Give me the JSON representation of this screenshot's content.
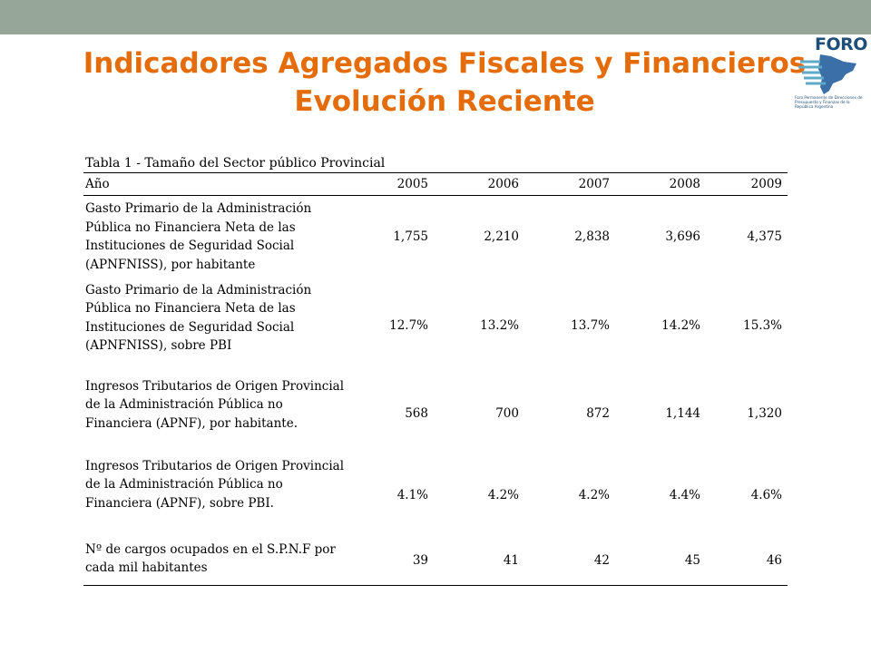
{
  "header": {
    "title_line1": "Indicadores Agregados Fiscales y Financieros",
    "title_line2": "Evolución Reciente"
  },
  "logo": {
    "name": "FORO",
    "caption": "Foro Permanente de Direcciones de Presupuesto y Finanzas de la República Argentina"
  },
  "table": {
    "caption": "Tabla 1 - Tamaño del Sector público Provincial",
    "headers": [
      "Año",
      "2005",
      "2006",
      "2007",
      "2008",
      "2009"
    ],
    "rows": [
      {
        "label_lines": [
          "Gasto Primario de la Administración",
          "Pública no Financiera Neta de las",
          "Instituciones de Seguridad Social",
          "(APNFNISS), por habitante"
        ],
        "values": [
          "1,755",
          "2,210",
          "2,838",
          "3,696",
          "4,375"
        ]
      },
      {
        "label_lines": [
          "Gasto Primario de la Administración",
          "Pública no Financiera Neta de las",
          "Instituciones de Seguridad Social",
          "(APNFNISS), sobre PBI"
        ],
        "values": [
          "12.7%",
          "13.2%",
          "13.7%",
          "14.2%",
          "15.3%"
        ]
      },
      {
        "label_lines": [
          "Ingresos Tributarios de Origen Provincial",
          "de la Administración Pública no",
          "Financiera (APNF), por habitante."
        ],
        "values": [
          "568",
          "700",
          "872",
          "1,144",
          "1,320"
        ]
      },
      {
        "label_lines": [
          "Ingresos Tributarios de Origen Provincial",
          "de la Administración Pública no",
          "Financiera (APNF), sobre PBI."
        ],
        "values": [
          "4.1%",
          "4.2%",
          "4.2%",
          "4.4%",
          "4.6%"
        ]
      },
      {
        "label_lines": [
          "Nº de cargos ocupados en el S.P.N.F por",
          "cada mil habitantes"
        ],
        "values": [
          "39",
          "41",
          "42",
          "45",
          "46"
        ]
      }
    ]
  }
}
